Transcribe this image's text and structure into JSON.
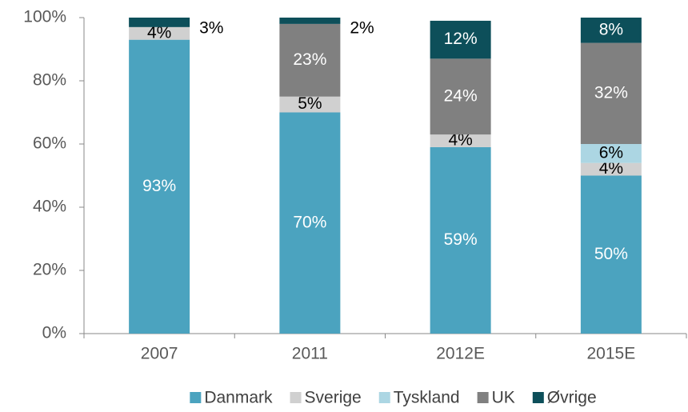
{
  "chart_data": {
    "type": "stacked_bar",
    "categories": [
      "2007",
      "2011",
      "2012E",
      "2015E"
    ],
    "series": [
      {
        "name": "Danmark",
        "color": "#4ba3bf",
        "label_color": "#ffffff",
        "values": [
          93,
          70,
          59,
          50
        ],
        "value_labels": [
          "93%",
          "70%",
          "59%",
          "50%"
        ]
      },
      {
        "name": "Sverige",
        "color": "#d0d0d0",
        "label_color": "#000000",
        "values": [
          4,
          5,
          4,
          4
        ],
        "value_labels": [
          "4%",
          "5%",
          "4%",
          "4%"
        ]
      },
      {
        "name": "Tyskland",
        "color": "#acd6e3",
        "label_color": "#000000",
        "values": [
          null,
          null,
          null,
          6
        ],
        "value_labels": [
          null,
          null,
          null,
          "6%"
        ]
      },
      {
        "name": "UK",
        "color": "#808080",
        "label_color": "#ffffff",
        "values": [
          null,
          23,
          24,
          32
        ],
        "value_labels": [
          null,
          "23%",
          "24%",
          "32%"
        ]
      },
      {
        "name": "Øvrige",
        "color": "#0d4f5a",
        "label_color": "#ffffff",
        "values": [
          3,
          2,
          12,
          8
        ],
        "value_labels": [
          "3%",
          "2%",
          "12%",
          "8%"
        ]
      }
    ],
    "ylim": [
      0,
      100
    ],
    "yticks": [
      {
        "value": 0,
        "label": "0%"
      },
      {
        "value": 20,
        "label": "20%"
      },
      {
        "value": 40,
        "label": "40%"
      },
      {
        "value": 60,
        "label": "60%"
      },
      {
        "value": 80,
        "label": "80%"
      },
      {
        "value": 100,
        "label": "100%"
      }
    ],
    "legend": "bottom"
  }
}
